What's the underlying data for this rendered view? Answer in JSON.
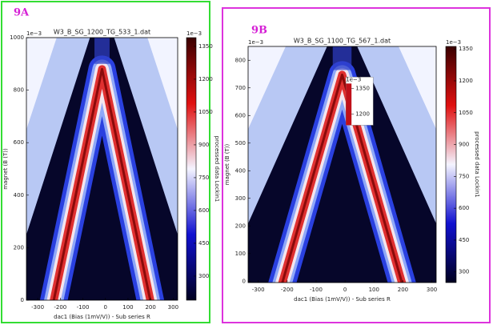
{
  "chart_data": [
    {
      "type": "heatmap",
      "panel_label": "9A",
      "title": "W3_B_SG_1200_TG_533_1.dat",
      "x_label": "dac1 (Bias (1mV/V)) - Sub series R",
      "y_label": "magnet (B (T))",
      "y_offset": "1e−3",
      "xlim": [
        -350,
        320
      ],
      "xticks": [
        -300,
        -200,
        -100,
        0,
        100,
        200,
        300
      ],
      "ylim": [
        0,
        1000
      ],
      "yticks": [
        0,
        200,
        400,
        600,
        800,
        1000
      ],
      "colorbar": {
        "label": "processed data Lockin1",
        "offset": "1e−3",
        "lim": [
          190,
          1390
        ],
        "ticks": [
          300,
          450,
          600,
          750,
          900,
          1050,
          1200,
          1350
        ]
      }
    },
    {
      "type": "heatmap",
      "panel_label": "9B",
      "title": "W3_B_SG_1100_TG_567_1.dat",
      "x_label": "dac1 (Bias (1mV/V)) - Sub series R",
      "y_label": "magnet (B (T))",
      "y_offset": "1e−3",
      "xlim": [
        -335,
        315
      ],
      "xticks": [
        -300,
        -200,
        -100,
        0,
        100,
        200,
        300
      ],
      "ylim": [
        -5,
        850
      ],
      "yticks": [
        0,
        100,
        200,
        300,
        400,
        500,
        600,
        700,
        800
      ],
      "colorbar": {
        "label": "processed data Lockin1",
        "offset": "1e−3",
        "lim": [
          250,
          1362
        ],
        "ticks": [
          300,
          450,
          600,
          750,
          900,
          1050,
          1200,
          1350
        ]
      },
      "inset_colorbar": {
        "offset": "1e−3",
        "ticks": [
          1350,
          1200
        ]
      }
    }
  ]
}
